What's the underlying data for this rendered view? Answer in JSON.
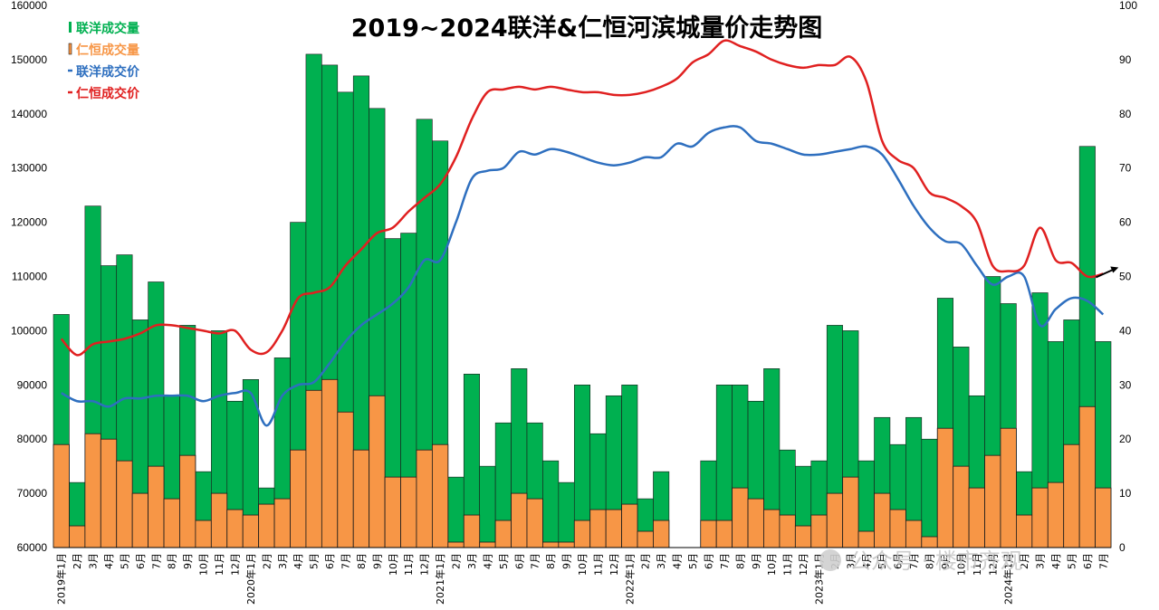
{
  "chart_data": {
    "type": "bar",
    "title": "2019~2024联洋&仁恒河滨城量价走势图",
    "left_axis": {
      "min": 60000,
      "max": 160000,
      "ticks": [
        "60000",
        "70000",
        "80000",
        "90000",
        "100000",
        "110000",
        "120000",
        "130000",
        "140000",
        "150000",
        "160000"
      ]
    },
    "right_axis": {
      "min": 0,
      "max": 100,
      "ticks": [
        "0",
        "10",
        "20",
        "30",
        "40",
        "50",
        "60",
        "70",
        "80",
        "90",
        "100"
      ]
    },
    "categories": [
      "2019年1月",
      "2月",
      "3月",
      "4月",
      "5月",
      "6月",
      "7月",
      "8月",
      "9月",
      "10月",
      "11月",
      "12月",
      "2020年1月",
      "2月",
      "3月",
      "4月",
      "5月",
      "6月",
      "7月",
      "8月",
      "9月",
      "10月",
      "11月",
      "12月",
      "2021年1月",
      "2月",
      "3月",
      "4月",
      "5月",
      "6月",
      "7月",
      "8月",
      "9月",
      "10月",
      "11月",
      "12月",
      "2022年1月",
      "2月",
      "3月",
      "4月",
      "5月",
      "6月",
      "7月",
      "8月",
      "9月",
      "10月",
      "11月",
      "12月",
      "2023年1月",
      "2月",
      "3月",
      "4月",
      "5月",
      "6月",
      "7月",
      "8月",
      "9月",
      "10月",
      "11月",
      "12月",
      "2024年1月",
      "2月",
      "3月",
      "4月",
      "5月",
      "6月",
      "7月"
    ],
    "series": [
      {
        "name": "联洋成交量",
        "type": "bar",
        "axis": "left",
        "color": "#00b050",
        "values": [
          103000,
          72000,
          123000,
          112000,
          114000,
          102000,
          109000,
          88000,
          101000,
          74000,
          100000,
          87000,
          91000,
          71000,
          95000,
          120000,
          151000,
          149000,
          144000,
          147000,
          141000,
          117000,
          118000,
          139000,
          135000,
          73000,
          92000,
          75000,
          83000,
          93000,
          83000,
          76000,
          72000,
          90000,
          81000,
          88000,
          90000,
          69000,
          74000,
          60000,
          60000,
          76000,
          90000,
          90000,
          87000,
          93000,
          78000,
          75000,
          76000,
          101000,
          100000,
          76000,
          84000,
          79000,
          84000,
          80000,
          106000,
          97000,
          88000,
          110000,
          105000,
          74000,
          107000,
          98000,
          102000,
          134000,
          98000
        ]
      },
      {
        "name": "仁恒成交量",
        "type": "bar",
        "axis": "left",
        "color": "#f79646",
        "values": [
          79000,
          64000,
          81000,
          80000,
          76000,
          70000,
          75000,
          69000,
          77000,
          65000,
          70000,
          67000,
          66000,
          68000,
          69000,
          78000,
          89000,
          91000,
          85000,
          78000,
          88000,
          73000,
          73000,
          78000,
          79000,
          61000,
          66000,
          61000,
          65000,
          70000,
          69000,
          61000,
          61000,
          65000,
          67000,
          67000,
          68000,
          63000,
          65000,
          60000,
          60000,
          65000,
          65000,
          71000,
          69000,
          67000,
          66000,
          64000,
          66000,
          70000,
          73000,
          63000,
          70000,
          67000,
          65000,
          62000,
          82000,
          75000,
          71000,
          77000,
          82000,
          66000,
          71000,
          72000,
          79000,
          86000,
          71000
        ]
      },
      {
        "name": "联洋成交价",
        "type": "line",
        "axis": "right",
        "color": "#2e6fbf",
        "values": [
          28.5,
          27,
          27,
          26,
          27.5,
          27.5,
          28,
          28,
          28,
          27,
          28,
          28.5,
          28.5,
          22.5,
          28,
          30,
          30.5,
          34,
          38,
          41,
          43,
          45,
          48,
          53,
          53,
          60,
          68,
          69.5,
          70,
          73,
          72.5,
          73.5,
          73,
          72,
          71,
          70.5,
          71,
          72,
          72,
          74.5,
          74,
          76.5,
          77.5,
          77.5,
          75,
          74.5,
          73.5,
          72.5,
          72.5,
          73,
          73.5,
          74,
          72.5,
          68,
          63,
          59,
          56.5,
          56,
          52,
          48.5,
          50,
          50,
          41,
          44,
          46,
          45.5,
          43
        ]
      },
      {
        "name": "仁恒成交价",
        "type": "line",
        "axis": "right",
        "color": "#e02020",
        "values": [
          38.5,
          35.5,
          37.5,
          38,
          38.5,
          39.5,
          41,
          41,
          40.5,
          40,
          39.5,
          40,
          36.5,
          36,
          40,
          46,
          47,
          48,
          52,
          55,
          58,
          59,
          62,
          64.5,
          67,
          72,
          79,
          84,
          84.5,
          85,
          84.5,
          85,
          84.5,
          84,
          84,
          83.5,
          83.5,
          84,
          85,
          86.5,
          89.5,
          91,
          93.5,
          92.5,
          91.5,
          90,
          89,
          88.5,
          89,
          89,
          90.5,
          86,
          75,
          71.5,
          70,
          65.5,
          64.5,
          63,
          60,
          52,
          51,
          52,
          59,
          53,
          52.5,
          50,
          50.5
        ]
      }
    ]
  },
  "watermark": "公众号 · 楼市齐观"
}
